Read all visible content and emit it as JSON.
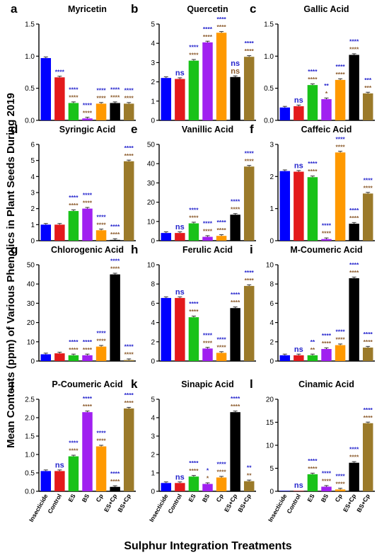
{
  "figure": {
    "ylabel": "Mean Contents (ppm) of Various Phenolics in Plant Seeds During 2019",
    "xlabel": "Sulphur Integration Treatments"
  },
  "colors": {
    "Insecticide": "#0000ff",
    "Control": "#e31a1c",
    "ES": "#19c219",
    "BS": "#a020f0",
    "Cp": "#ff9900",
    "ES+Cp": "#000000",
    "BS+Cp": "#9b7a2a",
    "sig_top": "#2222cc",
    "sig_bottom": "#8b5a2b"
  },
  "chart_data": [
    {
      "letter": "a",
      "title": "Myricetin",
      "type": "bar",
      "categories": [
        "Insecticide",
        "Control",
        "ES",
        "BS",
        "Cp",
        "ES+Cp",
        "BS+Cp"
      ],
      "values": [
        0.97,
        0.67,
        0.27,
        0.03,
        0.26,
        0.27,
        0.26
      ],
      "ylim": [
        0,
        1.5
      ],
      "yticks": [
        0,
        0.5,
        1.0,
        1.5
      ],
      "sig_top": [
        "",
        "****",
        "****",
        "****",
        "****",
        "****",
        "****"
      ],
      "sig_bottom": [
        "",
        "",
        "****",
        "****",
        "****",
        "****",
        "****"
      ]
    },
    {
      "letter": "b",
      "title": "Quercetin",
      "type": "bar",
      "categories": [
        "Insecticide",
        "Control",
        "ES",
        "BS",
        "Cp",
        "ES+Cp",
        "BS+Cp"
      ],
      "values": [
        2.2,
        2.15,
        3.1,
        4.05,
        4.55,
        2.25,
        3.3
      ],
      "ylim": [
        0,
        5
      ],
      "yticks": [
        0,
        1,
        2,
        3,
        4,
        5
      ],
      "sig_top": [
        "",
        "ns",
        "****",
        "****",
        "****",
        "ns",
        "****"
      ],
      "sig_bottom": [
        "",
        "",
        "****",
        "****",
        "****",
        "ns",
        "****"
      ]
    },
    {
      "letter": "c",
      "title": "Gallic Acid",
      "type": "bar",
      "categories": [
        "Insecticide",
        "Control",
        "ES",
        "BS",
        "Cp",
        "ES+Cp",
        "BS+Cp"
      ],
      "values": [
        0.2,
        0.22,
        0.55,
        0.33,
        0.63,
        1.02,
        0.42
      ],
      "ylim": [
        0,
        1.5
      ],
      "yticks": [
        0,
        0.5,
        1.0,
        1.5
      ],
      "sig_top": [
        "",
        "ns",
        "****",
        "**",
        "****",
        "****",
        "***"
      ],
      "sig_bottom": [
        "",
        "",
        "****",
        "*",
        "****",
        "****",
        "***"
      ]
    },
    {
      "letter": "d",
      "title": "Syringic Acid",
      "type": "bar",
      "categories": [
        "Insecticide",
        "Control",
        "ES",
        "BS",
        "Cp",
        "ES+Cp",
        "BS+Cp"
      ],
      "values": [
        1.0,
        1.0,
        1.85,
        2.0,
        0.65,
        0.05,
        4.95
      ],
      "ylim": [
        0,
        6
      ],
      "yticks": [
        0,
        1,
        2,
        3,
        4,
        5,
        6
      ],
      "sig_top": [
        "",
        "",
        "****",
        "****",
        "****",
        "****",
        "****"
      ],
      "sig_bottom": [
        "",
        "",
        "****",
        "****",
        "****",
        "****",
        "****"
      ]
    },
    {
      "letter": "e",
      "title": "Vanillic Acid",
      "type": "bar",
      "categories": [
        "Insecticide",
        "Control",
        "ES",
        "BS",
        "Cp",
        "ES+Cp",
        "BS+Cp"
      ],
      "values": [
        4.0,
        4.0,
        9.0,
        2.0,
        2.5,
        13.5,
        38.5
      ],
      "ylim": [
        0,
        50
      ],
      "yticks": [
        0,
        10,
        20,
        30,
        40,
        50
      ],
      "sig_top": [
        "",
        "ns",
        "****",
        "****",
        "****",
        "****",
        "****"
      ],
      "sig_bottom": [
        "",
        "",
        "****",
        "****",
        "****",
        "****",
        "****"
      ]
    },
    {
      "letter": "f",
      "title": "Caffeic Acid",
      "type": "bar",
      "categories": [
        "Insecticide",
        "Control",
        "ES",
        "BS",
        "Cp",
        "ES+Cp",
        "BS+Cp"
      ],
      "values": [
        2.17,
        2.15,
        1.98,
        0.05,
        2.75,
        0.53,
        1.47
      ],
      "ylim": [
        0,
        3
      ],
      "yticks": [
        0,
        1,
        2,
        3
      ],
      "sig_top": [
        "",
        "ns",
        "****",
        "****",
        "****",
        "****",
        "****"
      ],
      "sig_bottom": [
        "",
        "",
        "****",
        "****",
        "****",
        "****",
        "****"
      ]
    },
    {
      "letter": "g",
      "title": "Chlorogenic Acid",
      "type": "bar",
      "categories": [
        "Insecticide",
        "Control",
        "ES",
        "BS",
        "Cp",
        "ES+Cp",
        "BS+Cp"
      ],
      "values": [
        3.5,
        4.0,
        3.0,
        3.0,
        7.5,
        45.0,
        0.5
      ],
      "ylim": [
        0,
        50
      ],
      "yticks": [
        0,
        10,
        20,
        30,
        40,
        50
      ],
      "sig_top": [
        "",
        "",
        "****",
        "****",
        "****",
        "****",
        "****"
      ],
      "sig_bottom": [
        "",
        "",
        "****",
        "****",
        "****",
        "****",
        "****"
      ]
    },
    {
      "letter": "h",
      "title": "Ferulic Acid",
      "type": "bar",
      "categories": [
        "Insecticide",
        "Control",
        "ES",
        "BS",
        "Cp",
        "ES+Cp",
        "BS+Cp"
      ],
      "values": [
        6.55,
        6.55,
        4.55,
        1.3,
        0.85,
        5.5,
        7.8
      ],
      "ylim": [
        0,
        10
      ],
      "yticks": [
        0,
        2,
        4,
        6,
        8,
        10
      ],
      "sig_top": [
        "",
        "ns",
        "****",
        "****",
        "****",
        "****",
        "****"
      ],
      "sig_bottom": [
        "",
        "",
        "****",
        "****",
        "****",
        "****",
        "****"
      ]
    },
    {
      "letter": "i",
      "title": "M-Coumeric Acid",
      "type": "bar",
      "categories": [
        "Insecticide",
        "Control",
        "ES",
        "BS",
        "Cp",
        "ES+Cp",
        "BS+Cp"
      ],
      "values": [
        0.6,
        0.6,
        0.6,
        1.25,
        1.65,
        8.6,
        1.4
      ],
      "ylim": [
        0,
        10
      ],
      "yticks": [
        0,
        2,
        4,
        6,
        8,
        10
      ],
      "sig_top": [
        "",
        "ns",
        "**",
        "****",
        "****",
        "****",
        "****"
      ],
      "sig_bottom": [
        "",
        "",
        "**",
        "****",
        "****",
        "****",
        "****"
      ]
    },
    {
      "letter": "j",
      "title": "P-Coumeric Acid",
      "type": "bar",
      "categories": [
        "Insecticide",
        "Control",
        "ES",
        "BS",
        "Cp",
        "ES+Cp",
        "BS+Cp"
      ],
      "values": [
        0.55,
        0.55,
        0.95,
        2.15,
        1.22,
        0.12,
        2.25
      ],
      "ylim": [
        0,
        2.5
      ],
      "yticks": [
        0,
        0.5,
        1.0,
        1.5,
        2.0,
        2.5
      ],
      "sig_top": [
        "",
        "ns",
        "****",
        "****",
        "****",
        "****",
        "****"
      ],
      "sig_bottom": [
        "",
        "",
        "****",
        "****",
        "****",
        "****",
        "****"
      ]
    },
    {
      "letter": "k",
      "title": "Sinapic Acid",
      "type": "bar",
      "categories": [
        "Insecticide",
        "Control",
        "ES",
        "BS",
        "Cp",
        "ES+Cp",
        "BS+Cp"
      ],
      "values": [
        0.45,
        0.45,
        0.8,
        0.4,
        0.75,
        4.3,
        0.55
      ],
      "ylim": [
        0,
        5
      ],
      "yticks": [
        0,
        1,
        2,
        3,
        4,
        5
      ],
      "sig_top": [
        "",
        "ns",
        "****",
        "*",
        "****",
        "****",
        "**"
      ],
      "sig_bottom": [
        "",
        "",
        "****",
        "*",
        "****",
        "****",
        "**"
      ]
    },
    {
      "letter": "l",
      "title": "Cinamic Acid",
      "type": "bar",
      "categories": [
        "Insecticide",
        "Control",
        "ES",
        "BS",
        "Cp",
        "ES+Cp",
        "BS+Cp"
      ],
      "values": [
        0.0,
        0.0,
        3.7,
        1.0,
        0.4,
        6.2,
        14.8
      ],
      "ylim": [
        0,
        20
      ],
      "yticks": [
        0,
        5,
        10,
        15,
        20
      ],
      "sig_top": [
        "",
        "ns",
        "****",
        "****",
        "****",
        "****",
        "****"
      ],
      "sig_bottom": [
        "",
        "",
        "****",
        "****",
        "****",
        "****",
        "****"
      ]
    }
  ]
}
